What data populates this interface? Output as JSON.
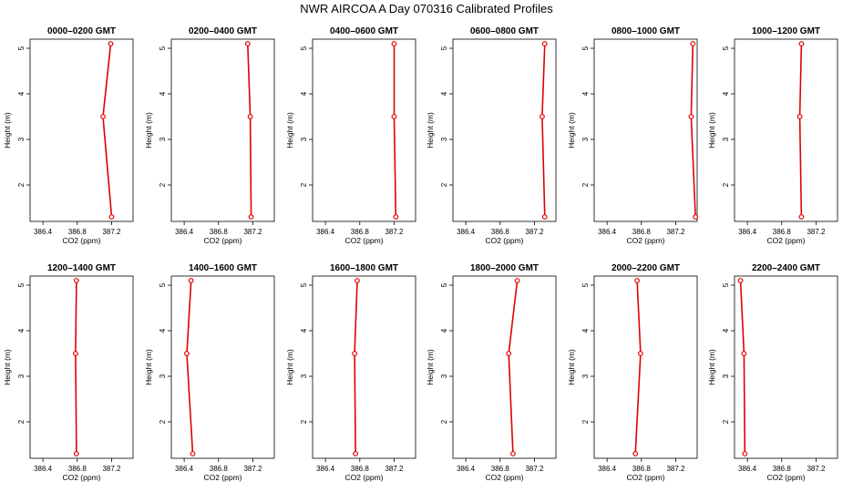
{
  "figure": {
    "title": "NWR AIRCOA A  Day 070316  Calibrated Profiles"
  },
  "chart_data": {
    "type": "line",
    "xlabel": "CO2 (ppm)",
    "ylabel": "Height (m)",
    "xlim": [
      386.25,
      387.45
    ],
    "ylim": [
      1.2,
      5.2
    ],
    "xticks": [
      386.4,
      386.8,
      387.2
    ],
    "xtick_labels": [
      "386.4",
      "386.8",
      "387.2"
    ],
    "yticks": [
      2,
      3,
      4,
      5
    ],
    "ytick_labels": [
      "2",
      "3",
      "4",
      "5"
    ],
    "series_color": "#e00000",
    "marker": "open-circle",
    "grid": false,
    "panels": [
      {
        "title": "0000–0200 GMT",
        "points": [
          {
            "co2": 387.19,
            "height": 5.1
          },
          {
            "co2": 387.1,
            "height": 3.5
          },
          {
            "co2": 387.2,
            "height": 1.3
          }
        ]
      },
      {
        "title": "0200–0400 GMT",
        "points": [
          {
            "co2": 387.14,
            "height": 5.1
          },
          {
            "co2": 387.17,
            "height": 3.5
          },
          {
            "co2": 387.18,
            "height": 1.3
          }
        ]
      },
      {
        "title": "0400–0600 GMT",
        "points": [
          {
            "co2": 387.2,
            "height": 5.1
          },
          {
            "co2": 387.2,
            "height": 3.5
          },
          {
            "co2": 387.22,
            "height": 1.3
          }
        ]
      },
      {
        "title": "0600–0800 GMT",
        "points": [
          {
            "co2": 387.32,
            "height": 5.1
          },
          {
            "co2": 387.29,
            "height": 3.5
          },
          {
            "co2": 387.32,
            "height": 1.3
          }
        ]
      },
      {
        "title": "0800–1000 GMT",
        "points": [
          {
            "co2": 387.4,
            "height": 5.1
          },
          {
            "co2": 387.38,
            "height": 3.5
          },
          {
            "co2": 387.43,
            "height": 1.3
          }
        ]
      },
      {
        "title": "1000–1200 GMT",
        "points": [
          {
            "co2": 387.03,
            "height": 5.1
          },
          {
            "co2": 387.01,
            "height": 3.5
          },
          {
            "co2": 387.03,
            "height": 1.3
          }
        ]
      },
      {
        "title": "1200–1400 GMT",
        "points": [
          {
            "co2": 386.79,
            "height": 5.1
          },
          {
            "co2": 386.78,
            "height": 3.5
          },
          {
            "co2": 386.79,
            "height": 1.3
          }
        ]
      },
      {
        "title": "1400–1600 GMT",
        "points": [
          {
            "co2": 386.48,
            "height": 5.1
          },
          {
            "co2": 386.43,
            "height": 3.5
          },
          {
            "co2": 386.5,
            "height": 1.3
          }
        ]
      },
      {
        "title": "1600–1800 GMT",
        "points": [
          {
            "co2": 386.77,
            "height": 5.1
          },
          {
            "co2": 386.74,
            "height": 3.5
          },
          {
            "co2": 386.75,
            "height": 1.3
          }
        ]
      },
      {
        "title": "1800–2000 GMT",
        "points": [
          {
            "co2": 387.0,
            "height": 5.1
          },
          {
            "co2": 386.9,
            "height": 3.5
          },
          {
            "co2": 386.95,
            "height": 1.3
          }
        ]
      },
      {
        "title": "2000–2200 GMT",
        "points": [
          {
            "co2": 386.75,
            "height": 5.1
          },
          {
            "co2": 386.79,
            "height": 3.5
          },
          {
            "co2": 386.73,
            "height": 1.3
          }
        ]
      },
      {
        "title": "2200–2400 GMT",
        "points": [
          {
            "co2": 386.32,
            "height": 5.1
          },
          {
            "co2": 386.36,
            "height": 3.5
          },
          {
            "co2": 386.37,
            "height": 1.3
          }
        ]
      }
    ]
  }
}
